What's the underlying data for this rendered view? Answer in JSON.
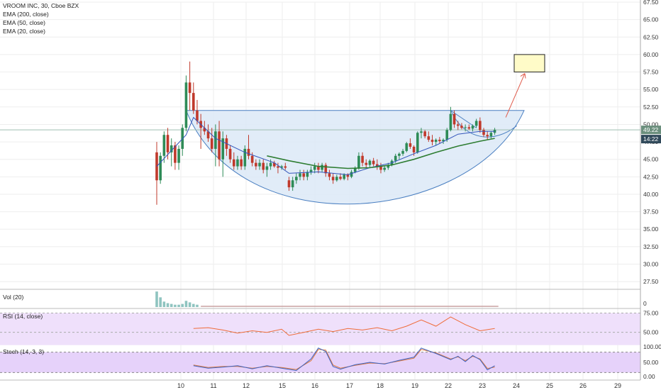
{
  "header": {
    "symbol_line": "VROOM INC, 30, Cboe BZX",
    "indicators": [
      "EMA (200, close)",
      "EMA (50, close)",
      "EMA (20, close)"
    ]
  },
  "panes": {
    "volume_label": "Vol (20)",
    "rsi_label": "RSI (14, close)",
    "stoch_label": "Stoch (14, 3, 3)"
  },
  "colors": {
    "up": "#2e8b57",
    "down": "#c0392b",
    "cup_fill": "#dce9f7",
    "cup_stroke": "#4a7fc1",
    "ema_short": "#3355bb",
    "ema_mid": "#2e7d32",
    "rsi_line": "#ef6c3a",
    "rsi_band": "#efe0fb",
    "stoch_k": "#3b63c4",
    "stoch_d": "#e07a3b",
    "target_box": "#fffbc8",
    "arrow": "#e05a4a",
    "last_price_tag": "#6b8f7d",
    "countdown_tag": "#30495a"
  },
  "chart_data": [
    {
      "type": "candlestick",
      "title": "VROOM INC, 30, Cboe BZX",
      "x_tick_labels": [
        "10",
        "11",
        "12",
        "15",
        "16",
        "17",
        "18",
        "19",
        "22",
        "23",
        "24",
        "25",
        "26",
        "29"
      ],
      "y_tick_labels": [
        "67.50",
        "65.00",
        "62.50",
        "60.00",
        "57.50",
        "55.00",
        "52.50",
        "50.00",
        "47.50",
        "45.00",
        "42.50",
        "40.00",
        "37.50",
        "35.00",
        "32.50",
        "30.00",
        "27.50"
      ],
      "ylim": [
        26.5,
        67.5
      ],
      "last_price_label": "49.22",
      "countdown_label": "14:22",
      "resistance_level": 52.0,
      "last_price_level": 49.22,
      "candles": [
        [
          0,
          46.0,
          47.5,
          38.5,
          42.0
        ],
        [
          1,
          42.0,
          46.0,
          41.5,
          45.5
        ],
        [
          2,
          45.5,
          49.0,
          44.5,
          48.5
        ],
        [
          3,
          48.5,
          49.5,
          45.0,
          46.0
        ],
        [
          4,
          46.0,
          48.0,
          44.0,
          47.0
        ],
        [
          5,
          47.0,
          47.5,
          43.5,
          44.5
        ],
        [
          6,
          44.5,
          47.0,
          43.5,
          46.5
        ],
        [
          7,
          46.5,
          50.0,
          45.5,
          49.5
        ],
        [
          8,
          49.5,
          57.0,
          49.0,
          56.0
        ],
        [
          9,
          56.0,
          59.0,
          52.0,
          54.5
        ],
        [
          10,
          54.5,
          56.0,
          51.5,
          52.0
        ],
        [
          11,
          52.0,
          53.5,
          50.0,
          50.5
        ],
        [
          12,
          50.5,
          51.5,
          46.5,
          49.5
        ],
        [
          13,
          49.5,
          50.5,
          48.5,
          49.0
        ],
        [
          14,
          49.0,
          50.0,
          47.5,
          48.0
        ],
        [
          15,
          48.0,
          49.5,
          46.0,
          46.5
        ],
        [
          16,
          46.5,
          50.0,
          44.0,
          49.0
        ],
        [
          17,
          49.0,
          50.5,
          44.0,
          45.0
        ],
        [
          18,
          45.0,
          49.0,
          42.5,
          48.0
        ],
        [
          19,
          48.0,
          48.5,
          45.5,
          46.5
        ],
        [
          20,
          46.5,
          47.0,
          44.5,
          45.0
        ],
        [
          21,
          45.0,
          46.0,
          43.5,
          44.0
        ],
        [
          22,
          44.0,
          45.5,
          43.5,
          45.0
        ],
        [
          23,
          45.0,
          45.5,
          43.5,
          44.0
        ],
        [
          24,
          44.0,
          47.0,
          43.5,
          46.5
        ],
        [
          25,
          46.5,
          48.5,
          45.0,
          45.5
        ],
        [
          26,
          45.5,
          46.0,
          44.0,
          44.5
        ],
        [
          27,
          44.5,
          45.0,
          43.5,
          44.0
        ],
        [
          28,
          44.0,
          45.0,
          43.5,
          44.5
        ],
        [
          29,
          44.5,
          45.0,
          43.0,
          43.5
        ],
        [
          30,
          43.5,
          44.5,
          42.5,
          44.0
        ],
        [
          31,
          44.0,
          45.0,
          43.5,
          44.5
        ],
        [
          32,
          44.5,
          44.8,
          43.8,
          44.0
        ],
        [
          33,
          44.0,
          44.5,
          43.0,
          43.8
        ],
        [
          34,
          43.8,
          44.2,
          43.5,
          44.0
        ],
        [
          35,
          44.0,
          44.5,
          43.5,
          43.8
        ],
        [
          36,
          42.0,
          42.5,
          40.5,
          41.0
        ],
        [
          37,
          41.0,
          42.5,
          40.5,
          42.0
        ],
        [
          38,
          42.0,
          43.0,
          41.5,
          42.5
        ],
        [
          39,
          42.5,
          43.5,
          42.0,
          43.0
        ],
        [
          40,
          43.0,
          43.5,
          42.0,
          42.5
        ],
        [
          41,
          42.5,
          43.5,
          42.0,
          43.2
        ],
        [
          42,
          43.2,
          44.0,
          42.8,
          43.5
        ],
        [
          43,
          43.5,
          44.5,
          43.0,
          44.0
        ],
        [
          44,
          44.0,
          44.5,
          43.0,
          43.5
        ],
        [
          45,
          43.5,
          44.5,
          43.2,
          44.2
        ],
        [
          46,
          44.2,
          44.5,
          42.5,
          43.0
        ],
        [
          47,
          43.0,
          43.5,
          42.0,
          42.5
        ],
        [
          48,
          42.5,
          43.0,
          41.5,
          42.0
        ],
        [
          49,
          42.0,
          42.8,
          41.8,
          42.5
        ],
        [
          50,
          42.5,
          43.0,
          42.0,
          42.2
        ],
        [
          51,
          42.2,
          43.0,
          42.0,
          42.8
        ],
        [
          52,
          42.8,
          43.0,
          42.0,
          42.5
        ],
        [
          53,
          42.5,
          43.5,
          42.3,
          43.2
        ],
        [
          54,
          43.2,
          44.0,
          43.0,
          43.8
        ],
        [
          55,
          43.8,
          46.0,
          43.5,
          45.5
        ],
        [
          56,
          45.5,
          46.0,
          44.0,
          44.5
        ],
        [
          57,
          44.5,
          45.0,
          43.8,
          44.2
        ],
        [
          58,
          44.2,
          45.0,
          43.8,
          44.8
        ],
        [
          59,
          44.8,
          45.2,
          44.0,
          44.3
        ],
        [
          60,
          44.3,
          45.0,
          43.5,
          44.0
        ],
        [
          61,
          44.0,
          44.5,
          43.0,
          43.5
        ],
        [
          62,
          43.5,
          44.0,
          43.2,
          43.8
        ],
        [
          63,
          43.8,
          44.5,
          43.5,
          44.2
        ],
        [
          64,
          44.2,
          45.0,
          44.0,
          44.8
        ],
        [
          65,
          44.8,
          45.8,
          44.5,
          45.5
        ],
        [
          66,
          45.5,
          46.0,
          45.0,
          45.8
        ],
        [
          67,
          45.8,
          46.5,
          45.5,
          46.2
        ],
        [
          68,
          46.2,
          47.5,
          46.0,
          47.3
        ],
        [
          69,
          47.3,
          48.0,
          46.5,
          46.8
        ],
        [
          70,
          46.8,
          47.0,
          45.5,
          46.0
        ],
        [
          71,
          46.0,
          49.0,
          45.8,
          48.8
        ],
        [
          72,
          48.8,
          49.5,
          48.0,
          49.0
        ],
        [
          73,
          49.0,
          49.2,
          48.0,
          48.3
        ],
        [
          74,
          48.3,
          49.0,
          47.5,
          47.8
        ],
        [
          75,
          47.8,
          48.5,
          47.0,
          47.5
        ],
        [
          76,
          47.5,
          48.0,
          47.0,
          47.8
        ],
        [
          77,
          47.8,
          48.2,
          47.3,
          47.6
        ],
        [
          78,
          47.6,
          48.0,
          47.2,
          47.8
        ],
        [
          79,
          47.8,
          49.5,
          47.5,
          49.2
        ],
        [
          80,
          49.2,
          52.5,
          49.0,
          51.5
        ],
        [
          81,
          51.5,
          52.0,
          49.5,
          50.0
        ],
        [
          82,
          50.0,
          50.5,
          49.2,
          49.8
        ],
        [
          83,
          49.8,
          50.2,
          49.3,
          49.5
        ],
        [
          84,
          49.5,
          50.0,
          49.0,
          49.6
        ],
        [
          85,
          49.6,
          50.0,
          49.2,
          49.4
        ],
        [
          86,
          49.4,
          50.0,
          49.0,
          49.8
        ],
        [
          87,
          49.8,
          50.8,
          49.5,
          50.5
        ],
        [
          88,
          50.5,
          51.0,
          48.8,
          49.2
        ],
        [
          89,
          49.2,
          49.5,
          48.2,
          48.5
        ],
        [
          90,
          48.5,
          49.0,
          47.8,
          48.3
        ],
        [
          91,
          48.3,
          49.0,
          48.0,
          48.8
        ],
        [
          92,
          48.8,
          49.5,
          48.5,
          49.22
        ]
      ],
      "ema_short": [
        [
          0,
          44.0
        ],
        [
          8,
          48.5
        ],
        [
          10,
          51.0
        ],
        [
          16,
          48.0
        ],
        [
          24,
          46.0
        ],
        [
          32,
          44.5
        ],
        [
          36,
          43.0
        ],
        [
          44,
          43.2
        ],
        [
          52,
          42.8
        ],
        [
          58,
          43.8
        ],
        [
          64,
          44.5
        ],
        [
          70,
          45.8
        ],
        [
          76,
          47.0
        ],
        [
          82,
          48.6
        ],
        [
          88,
          49.0
        ],
        [
          92,
          49.0
        ]
      ],
      "ema_long": [
        [
          30,
          45.5
        ],
        [
          36,
          44.8
        ],
        [
          44,
          44.0
        ],
        [
          52,
          43.7
        ],
        [
          58,
          43.8
        ],
        [
          64,
          44.2
        ],
        [
          70,
          45.0
        ],
        [
          76,
          46.0
        ],
        [
          82,
          46.9
        ],
        [
          88,
          47.6
        ],
        [
          92,
          48.0
        ]
      ],
      "volume": [
        [
          0,
          40
        ],
        [
          1,
          25
        ],
        [
          2,
          14
        ],
        [
          3,
          10
        ],
        [
          4,
          8
        ],
        [
          5,
          6
        ],
        [
          6,
          6
        ],
        [
          7,
          8
        ],
        [
          8,
          16
        ],
        [
          9,
          12
        ],
        [
          10,
          8
        ],
        [
          11,
          6
        ]
      ],
      "rsi": [
        [
          10,
          55
        ],
        [
          14,
          56
        ],
        [
          18,
          53
        ],
        [
          22,
          49
        ],
        [
          26,
          52
        ],
        [
          30,
          50
        ],
        [
          34,
          54
        ],
        [
          36,
          46
        ],
        [
          40,
          50
        ],
        [
          44,
          54
        ],
        [
          48,
          51
        ],
        [
          52,
          55
        ],
        [
          56,
          53
        ],
        [
          60,
          56
        ],
        [
          64,
          52
        ],
        [
          68,
          58
        ],
        [
          72,
          66
        ],
        [
          76,
          58
        ],
        [
          80,
          70
        ],
        [
          84,
          60
        ],
        [
          88,
          52
        ],
        [
          92,
          55
        ]
      ],
      "stoch_k": [
        [
          10,
          40
        ],
        [
          14,
          33
        ],
        [
          18,
          36
        ],
        [
          22,
          40
        ],
        [
          26,
          31
        ],
        [
          30,
          40
        ],
        [
          34,
          33
        ],
        [
          38,
          26
        ],
        [
          42,
          60
        ],
        [
          44,
          92
        ],
        [
          46,
          82
        ],
        [
          48,
          38
        ],
        [
          50,
          30
        ],
        [
          54,
          43
        ],
        [
          58,
          50
        ],
        [
          62,
          45
        ],
        [
          66,
          56
        ],
        [
          70,
          65
        ],
        [
          72,
          92
        ],
        [
          76,
          76
        ],
        [
          80,
          58
        ],
        [
          82,
          68
        ],
        [
          84,
          52
        ],
        [
          86,
          70
        ],
        [
          88,
          58
        ],
        [
          90,
          28
        ],
        [
          92,
          40
        ]
      ],
      "stoch_d": [
        [
          10,
          42
        ],
        [
          14,
          35
        ],
        [
          18,
          38
        ],
        [
          22,
          38
        ],
        [
          26,
          33
        ],
        [
          30,
          38
        ],
        [
          34,
          35
        ],
        [
          38,
          29
        ],
        [
          42,
          55
        ],
        [
          44,
          88
        ],
        [
          46,
          86
        ],
        [
          48,
          42
        ],
        [
          50,
          33
        ],
        [
          54,
          41
        ],
        [
          58,
          48
        ],
        [
          62,
          46
        ],
        [
          66,
          54
        ],
        [
          70,
          62
        ],
        [
          72,
          88
        ],
        [
          76,
          78
        ],
        [
          80,
          60
        ],
        [
          82,
          66
        ],
        [
          84,
          55
        ],
        [
          86,
          68
        ],
        [
          88,
          60
        ],
        [
          90,
          32
        ],
        [
          92,
          36
        ]
      ]
    }
  ]
}
